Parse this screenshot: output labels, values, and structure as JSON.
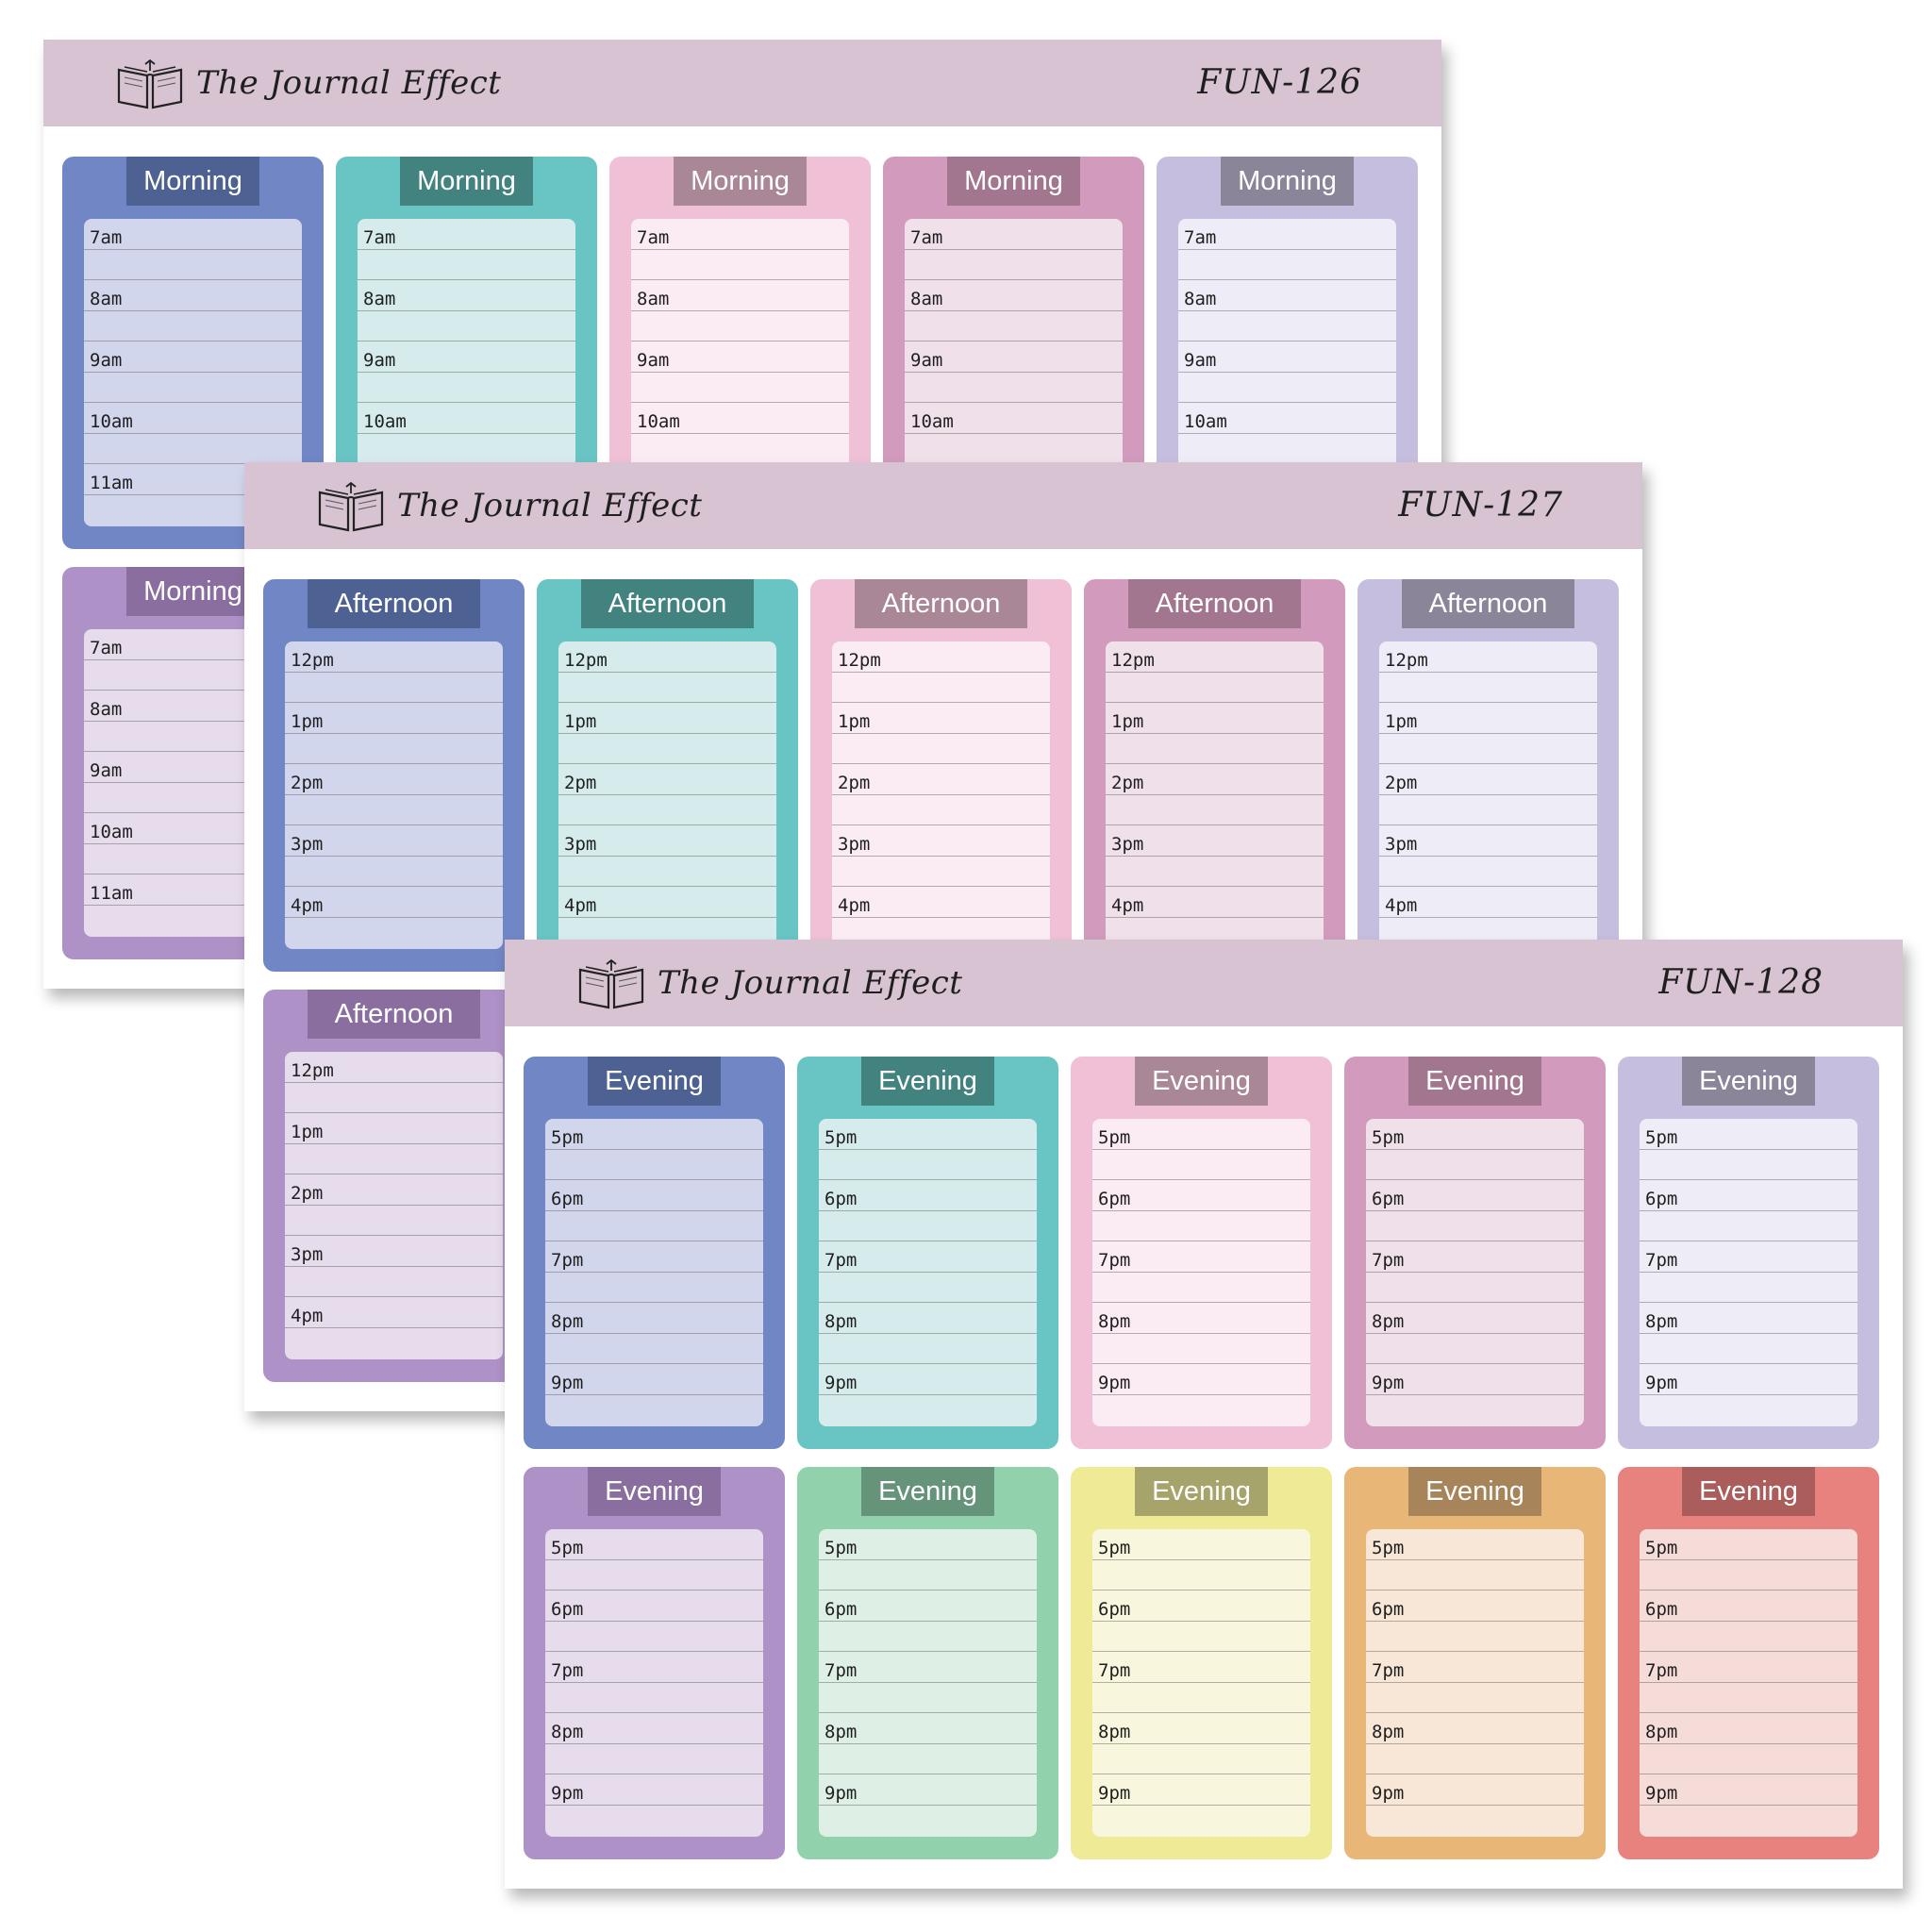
{
  "brand_name": "The Journal Effect",
  "icons": {
    "brand": "open-book-icon"
  },
  "themes": [
    {
      "name": "blue",
      "card": "#7186c4",
      "title": "#4e6193",
      "body": "#d2d6ec"
    },
    {
      "name": "teal",
      "card": "#68c5c3",
      "title": "#42837f",
      "body": "#d6ecec"
    },
    {
      "name": "pink",
      "card": "#f0c0d6",
      "title": "#a98797",
      "body": "#fbecf3"
    },
    {
      "name": "mauve",
      "card": "#d29bbd",
      "title": "#a2768f",
      "body": "#f0e0ea"
    },
    {
      "name": "lavender",
      "card": "#c6bedf",
      "title": "#8a8598",
      "body": "#eeedf7"
    },
    {
      "name": "purple",
      "card": "#ae91c6",
      "title": "#8a6e9f",
      "body": "#e6dcec"
    },
    {
      "name": "mint",
      "card": "#91d1ab",
      "title": "#66947a",
      "body": "#deefe5"
    },
    {
      "name": "yellow",
      "card": "#eeea96",
      "title": "#a6a46a",
      "body": "#f8f7de"
    },
    {
      "name": "orange",
      "card": "#e8b676",
      "title": "#a7845a",
      "body": "#f8e7d6"
    },
    {
      "name": "red",
      "card": "#e8827e",
      "title": "#ab5d5c",
      "body": "#f6dcd8"
    }
  ],
  "sheets": [
    {
      "code": "FUN-126",
      "card_title": "Morning",
      "slots": [
        "7am",
        "8am",
        "9am",
        "10am",
        "11am"
      ]
    },
    {
      "code": "FUN-127",
      "card_title": "Afternoon",
      "slots": [
        "12pm",
        "1pm",
        "2pm",
        "3pm",
        "4pm"
      ]
    },
    {
      "code": "FUN-128",
      "card_title": "Evening",
      "slots": [
        "5pm",
        "6pm",
        "7pm",
        "8pm",
        "9pm"
      ]
    }
  ]
}
